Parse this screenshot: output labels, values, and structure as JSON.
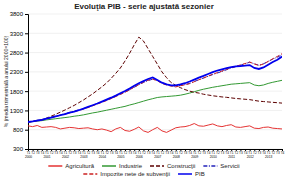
{
  "chart_data": {
    "type": "line",
    "title": "Evoluţia PIB - serie ajustată sezonier",
    "ylabel": "% (media trimestrială a anului 2000=100)",
    "categories": [
      "T1\n2000",
      "T2",
      "T3",
      "T4",
      "T1\n2001",
      "T2",
      "T3",
      "T4",
      "T1\n2002",
      "T2",
      "T3",
      "T4",
      "T1\n2003",
      "T2",
      "T3",
      "T4",
      "T1\n2004",
      "T2",
      "T3",
      "T4",
      "T1\n2005",
      "T2",
      "T3",
      "T4",
      "T1\n2006",
      "T2",
      "T3",
      "T4",
      "T1\n2007",
      "T2",
      "T3",
      "T4",
      "T1\n2008",
      "T2",
      "T3",
      "T4",
      "T1\n2009",
      "T2",
      "T3",
      "T4",
      "T1\n2010",
      "T2",
      "T3",
      "T4",
      "T1\n2011",
      "T2",
      "T3",
      "T4",
      "T1\n2012",
      "T2",
      "T3",
      "T4",
      "T1\n2013",
      "T2",
      "T3",
      "T4"
    ],
    "series": [
      {
        "name": "Agricultură",
        "color": "#e53333",
        "line_style": "solid",
        "values": [
          900,
          880,
          910,
          860,
          870,
          880,
          860,
          820,
          840,
          860,
          850,
          830,
          840,
          850,
          820,
          800,
          820,
          790,
          750,
          820,
          860,
          780,
          760,
          810,
          870,
          770,
          730,
          800,
          860,
          770,
          730,
          790,
          850,
          870,
          880,
          910,
          960,
          900,
          890,
          920,
          950,
          900,
          880,
          910,
          930,
          870,
          860,
          880,
          900,
          840,
          830,
          860,
          870,
          840,
          830,
          820
        ]
      },
      {
        "name": "Industrie",
        "color": "#339933",
        "line_style": "solid",
        "values": [
          1000,
          1010,
          1025,
          1035,
          1055,
          1070,
          1085,
          1100,
          1115,
          1130,
          1150,
          1165,
          1185,
          1210,
          1235,
          1255,
          1280,
          1305,
          1330,
          1355,
          1380,
          1405,
          1440,
          1470,
          1505,
          1540,
          1575,
          1605,
          1635,
          1650,
          1660,
          1670,
          1680,
          1695,
          1720,
          1750,
          1785,
          1820,
          1850,
          1875,
          1900,
          1920,
          1940,
          1960,
          1980,
          1990,
          2000,
          2010,
          2020,
          1960,
          1940,
          1960,
          2000,
          2030,
          2055,
          2080
        ]
      },
      {
        "name": "Construcţii",
        "color": "#5c0000",
        "line_style": "dashed",
        "values": [
          1000,
          1015,
          1040,
          1060,
          1100,
          1150,
          1200,
          1255,
          1310,
          1370,
          1430,
          1500,
          1570,
          1650,
          1730,
          1820,
          1910,
          2010,
          2130,
          2260,
          2400,
          2580,
          2780,
          3000,
          3200,
          3100,
          2900,
          2700,
          2500,
          2300,
          2150,
          2020,
          1950,
          1890,
          1840,
          1800,
          1770,
          1750,
          1720,
          1700,
          1680,
          1665,
          1650,
          1640,
          1625,
          1610,
          1600,
          1590,
          1580,
          1560,
          1540,
          1530,
          1520,
          1510,
          1500,
          1490
        ]
      },
      {
        "name": "Servicii",
        "color": "#2222bb",
        "line_style": "dashdot",
        "values": [
          1000,
          1020,
          1045,
          1065,
          1095,
          1125,
          1155,
          1185,
          1215,
          1245,
          1280,
          1310,
          1345,
          1385,
          1430,
          1475,
          1520,
          1565,
          1615,
          1665,
          1720,
          1775,
          1835,
          1900,
          1965,
          2025,
          2075,
          2110,
          2080,
          2020,
          1975,
          1945,
          1930,
          1950,
          1970,
          2000,
          2050,
          2095,
          2140,
          2185,
          2230,
          2270,
          2310,
          2355,
          2400,
          2435,
          2470,
          2510,
          2550,
          2510,
          2470,
          2510,
          2570,
          2630,
          2680,
          2740
        ]
      },
      {
        "name": "Impozite nete de subvenţii",
        "color": "#cc2222",
        "line_style": "dashed",
        "values": [
          1000,
          1015,
          1035,
          1055,
          1085,
          1115,
          1145,
          1175,
          1205,
          1235,
          1270,
          1300,
          1335,
          1375,
          1420,
          1465,
          1510,
          1555,
          1605,
          1660,
          1715,
          1770,
          1835,
          1905,
          1970,
          2030,
          2085,
          2110,
          2070,
          2000,
          1960,
          1930,
          1910,
          1940,
          1965,
          1995,
          2045,
          2095,
          2140,
          2190,
          2240,
          2280,
          2320,
          2365,
          2410,
          2445,
          2480,
          2515,
          2555,
          2505,
          2465,
          2505,
          2570,
          2640,
          2700,
          2770
        ]
      },
      {
        "name": "PIB",
        "color": "#0000ee",
        "line_style": "solid",
        "values": [
          1000,
          1015,
          1035,
          1055,
          1085,
          1115,
          1145,
          1175,
          1205,
          1240,
          1270,
          1305,
          1345,
          1390,
          1435,
          1480,
          1530,
          1580,
          1630,
          1685,
          1745,
          1805,
          1870,
          1940,
          2005,
          2060,
          2115,
          2155,
          2090,
          2020,
          1975,
          1950,
          1950,
          1975,
          2005,
          2050,
          2100,
          2150,
          2195,
          2245,
          2295,
          2335,
          2365,
          2395,
          2425,
          2440,
          2450,
          2460,
          2475,
          2400,
          2375,
          2415,
          2485,
          2555,
          2615,
          2695
        ]
      }
    ],
    "ylim": [
      300,
      3800
    ],
    "yticks": [
      300,
      800,
      1300,
      1800,
      2300,
      2800,
      3300,
      3800
    ],
    "grid": true
  }
}
